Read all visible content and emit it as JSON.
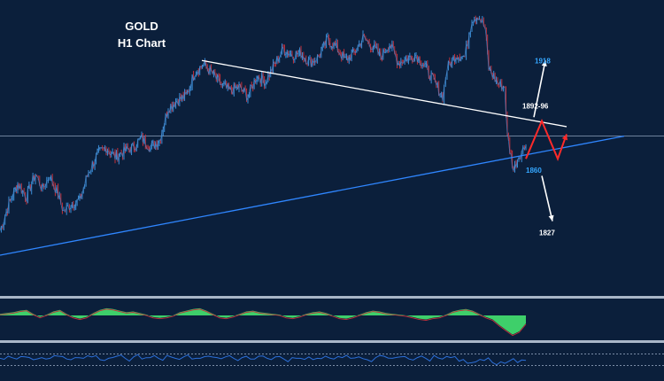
{
  "chart_data": {
    "type": "line",
    "title": "GOLD",
    "subtitle": "H1 Chart",
    "symbol": "GOLD",
    "timeframe": "H1",
    "price_levels": [
      {
        "label": "1918",
        "value": 1918,
        "color": "#35a7ff"
      },
      {
        "label": "1892-96",
        "value": 1894,
        "color": "#ffffff"
      },
      {
        "label": "1860",
        "value": 1860,
        "color": "#35a7ff"
      },
      {
        "label": "1827",
        "value": 1827,
        "color": "#ffffff"
      }
    ],
    "price_points": [
      {
        "x": 0,
        "y": 1828
      },
      {
        "x": 10,
        "y": 1842
      },
      {
        "x": 20,
        "y": 1853
      },
      {
        "x": 30,
        "y": 1846
      },
      {
        "x": 40,
        "y": 1858
      },
      {
        "x": 48,
        "y": 1850
      },
      {
        "x": 56,
        "y": 1857
      },
      {
        "x": 64,
        "y": 1849
      },
      {
        "x": 72,
        "y": 1838
      },
      {
        "x": 80,
        "y": 1842
      },
      {
        "x": 90,
        "y": 1844
      },
      {
        "x": 100,
        "y": 1859
      },
      {
        "x": 110,
        "y": 1868
      },
      {
        "x": 120,
        "y": 1872
      },
      {
        "x": 130,
        "y": 1867
      },
      {
        "x": 140,
        "y": 1870
      },
      {
        "x": 150,
        "y": 1872
      },
      {
        "x": 160,
        "y": 1877
      },
      {
        "x": 170,
        "y": 1872
      },
      {
        "x": 180,
        "y": 1876
      },
      {
        "x": 190,
        "y": 1893
      },
      {
        "x": 200,
        "y": 1897
      },
      {
        "x": 210,
        "y": 1899
      },
      {
        "x": 220,
        "y": 1912
      },
      {
        "x": 230,
        "y": 1916
      },
      {
        "x": 240,
        "y": 1911
      },
      {
        "x": 250,
        "y": 1905
      },
      {
        "x": 260,
        "y": 1902
      },
      {
        "x": 270,
        "y": 1904
      },
      {
        "x": 280,
        "y": 1899
      },
      {
        "x": 290,
        "y": 1910
      },
      {
        "x": 300,
        "y": 1907
      },
      {
        "x": 310,
        "y": 1916
      },
      {
        "x": 320,
        "y": 1924
      },
      {
        "x": 330,
        "y": 1921
      },
      {
        "x": 340,
        "y": 1922
      },
      {
        "x": 350,
        "y": 1917
      },
      {
        "x": 360,
        "y": 1920
      },
      {
        "x": 370,
        "y": 1929
      },
      {
        "x": 380,
        "y": 1925
      },
      {
        "x": 390,
        "y": 1918
      },
      {
        "x": 400,
        "y": 1922
      },
      {
        "x": 410,
        "y": 1930
      },
      {
        "x": 420,
        "y": 1926
      },
      {
        "x": 430,
        "y": 1920
      },
      {
        "x": 440,
        "y": 1927
      },
      {
        "x": 450,
        "y": 1917
      },
      {
        "x": 460,
        "y": 1919
      },
      {
        "x": 470,
        "y": 1921
      },
      {
        "x": 480,
        "y": 1915
      },
      {
        "x": 490,
        "y": 1907
      },
      {
        "x": 500,
        "y": 1899
      },
      {
        "x": 505,
        "y": 1914
      },
      {
        "x": 515,
        "y": 1921
      },
      {
        "x": 525,
        "y": 1920
      },
      {
        "x": 533,
        "y": 1940
      },
      {
        "x": 540,
        "y": 1942
      },
      {
        "x": 548,
        "y": 1935
      },
      {
        "x": 552,
        "y": 1914
      },
      {
        "x": 562,
        "y": 1906
      },
      {
        "x": 570,
        "y": 1904
      },
      {
        "x": 573,
        "y": 1878
      },
      {
        "x": 580,
        "y": 1860
      },
      {
        "x": 586,
        "y": 1868
      },
      {
        "x": 594,
        "y": 1873
      }
    ],
    "trendlines": [
      {
        "name": "resistance",
        "color": "#ffffff",
        "points": [
          {
            "x": 228,
            "y": 1918
          },
          {
            "x": 640,
            "y": 1883
          }
        ]
      },
      {
        "name": "support",
        "color": "#2f86ff",
        "points": [
          {
            "x": 0,
            "y": 1815
          },
          {
            "x": 705,
            "y": 1878
          }
        ]
      }
    ],
    "horizontal_level": {
      "y": 1878,
      "color": "#8fa2bd"
    },
    "projection": {
      "path": [
        {
          "x": 594,
          "y": 1866
        },
        {
          "x": 612,
          "y": 1886
        },
        {
          "x": 630,
          "y": 1866
        },
        {
          "x": 640,
          "y": 1879
        }
      ],
      "color": "#ff2a2a"
    },
    "arrows": [
      {
        "from": {
          "x": 603,
          "y": 1888
        },
        "to": {
          "x": 616,
          "y": 1918
        },
        "color": "#ffffff"
      },
      {
        "from": {
          "x": 612,
          "y": 1857
        },
        "to": {
          "x": 624,
          "y": 1833
        },
        "color": "#ffffff"
      }
    ],
    "oscillator": {
      "type": "area",
      "color": "#3ecf6a",
      "values": [
        0.2,
        0.3,
        0.4,
        0.6,
        0.7,
        0.2,
        -0.2,
        0.1,
        0.5,
        0.7,
        0.2,
        -0.2,
        -0.4,
        -0.2,
        0.3,
        0.7,
        0.9,
        0.8,
        0.6,
        0.4,
        0.5,
        0.3,
        0.1,
        -0.2,
        -0.3,
        -0.2,
        0.0,
        0.4,
        0.6,
        0.8,
        0.9,
        0.6,
        0.2,
        -0.2,
        -0.3,
        -0.1,
        0.2,
        0.5,
        0.6,
        0.4,
        0.3,
        0.2,
        0.1,
        -0.2,
        -0.3,
        -0.1,
        0.2,
        0.4,
        0.5,
        0.3,
        0.0,
        -0.3,
        -0.4,
        -0.2,
        0.1,
        0.4,
        0.6,
        0.5,
        0.3,
        0.2,
        0.1,
        0.0,
        -0.2,
        -0.4,
        -0.5,
        -0.3,
        -0.2,
        0.1,
        0.5,
        0.7,
        0.8,
        0.6,
        0.2,
        -0.2,
        -0.5,
        -1.2,
        -1.8,
        -2.4,
        -2.0,
        -1.0
      ]
    },
    "oscillator2": {
      "type": "line",
      "color": "#2c6fd8",
      "values": [
        0.2,
        0.5,
        0.1,
        0.4,
        0.0,
        0.3,
        0.2,
        0.5,
        0.1,
        0.3,
        0.2,
        0.4,
        0.0,
        0.2,
        0.5,
        0.2,
        0.4,
        0.1,
        0.3,
        0.2,
        0.6,
        0.2,
        0.4,
        0.1,
        0.2,
        0.5,
        0.3,
        0.4,
        0.2,
        0.3,
        0.1,
        0.5,
        0.2,
        0.4,
        0.1,
        0.3,
        0.2,
        0.4,
        0.2,
        0.5,
        0.1,
        0.3,
        0.2,
        0.4,
        0.0,
        0.3,
        0.5,
        0.2,
        0.4,
        0.1,
        0.3,
        0.2,
        0.6,
        0.1,
        0.3,
        -0.2,
        -0.5,
        -0.3,
        -0.1,
        -0.4,
        -0.3,
        -0.2,
        -0.4,
        -0.1
      ],
      "levels": [
        0.8,
        -0.8
      ]
    },
    "y_range": [
      1800,
      1950
    ],
    "x_range": [
      0,
      750
    ]
  }
}
